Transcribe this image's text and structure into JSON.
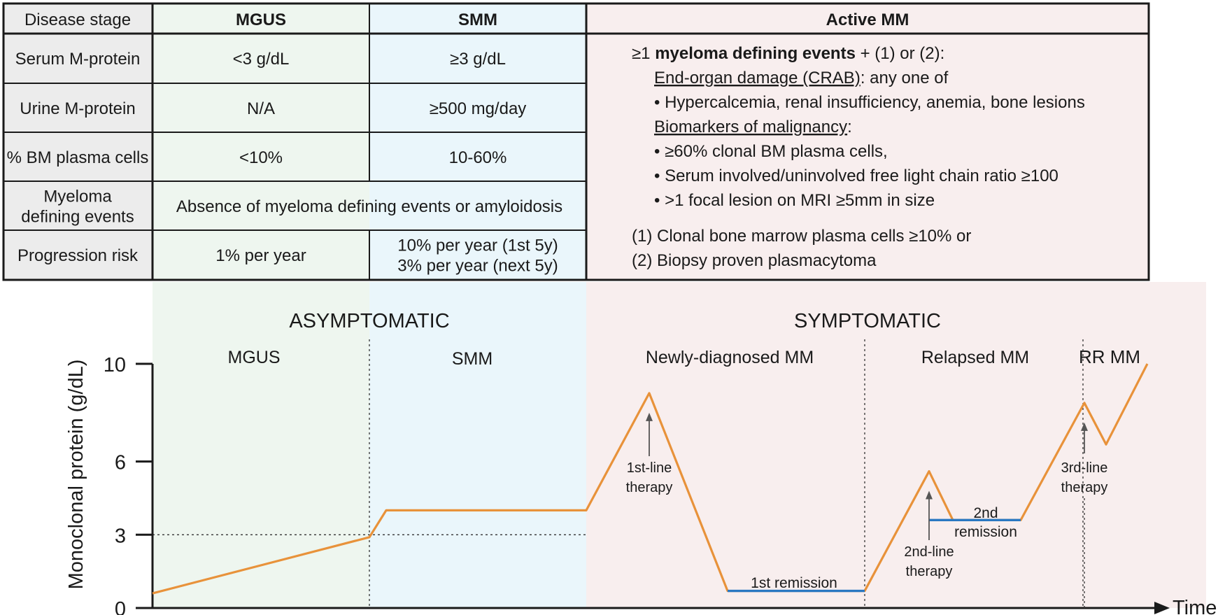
{
  "colors": {
    "mgus_bg": "#eef6ef",
    "smm_bg": "#eaf6fb",
    "mm_bg": "#f8eeee",
    "label_bg": "#ececec",
    "curve": "#e8923a",
    "remission": "#2a78c2",
    "rrmm": "#c0202a",
    "arrow_label": "#555555"
  },
  "table": {
    "header": {
      "stage": "Disease stage",
      "mgus": "MGUS",
      "smm": "SMM",
      "mm": "Active MM"
    },
    "rows": [
      {
        "label": [
          "Serum M-protein"
        ],
        "mgus": [
          "<3 g/dL"
        ],
        "smm": [
          "≥3 g/dL"
        ]
      },
      {
        "label": [
          "Urine M-protein"
        ],
        "mgus": [
          "N/A"
        ],
        "smm": [
          "≥500 mg/day"
        ]
      },
      {
        "label": [
          "% BM plasma cells"
        ],
        "mgus": [
          "<10%"
        ],
        "smm": [
          "10-60%"
        ]
      },
      {
        "label": [
          "Myeloma",
          "defining events"
        ],
        "merged": "Absence of myeloma defining events or amyloidosis"
      },
      {
        "label": [
          "Progression risk"
        ],
        "mgus": [
          "1% per year"
        ],
        "smm": [
          "10% per year (1st 5y)",
          "3% per year (next 5y)"
        ]
      }
    ],
    "mm_criteria": {
      "intro_prefix": "≥1 ",
      "intro_bold": "myeloma defining events",
      "intro_suffix": " + (1) or (2):",
      "crab_head": "End-organ damage (CRAB)",
      "crab_tail": ": any one of",
      "crab_item": "• Hypercalcemia, renal insufficiency, anemia, bone lesions",
      "bio_head": "Biomarkers of malignancy",
      "bio_tail": ":",
      "bio_items": [
        "• ≥60% clonal BM plasma cells,",
        "• Serum involved/uninvolved free light chain ratio ≥100",
        "• >1 focal lesion on MRI ≥5mm in size"
      ],
      "cond1": "(1) Clonal bone marrow plasma cells ≥10% or",
      "cond2": "(2) Biopsy proven plasmacytoma"
    }
  },
  "chart_data": {
    "type": "line",
    "ylabel": "Monoclonal protein (g/dL)",
    "xlabel": "Time",
    "yticks": [
      0,
      3,
      6,
      10
    ],
    "ylim": [
      0,
      10
    ],
    "groups": [
      "ASYMPTOMATIC",
      "SYMPTOMATIC"
    ],
    "phases": [
      "MGUS",
      "SMM",
      "Newly-diagnosed MM",
      "Relapsed MM",
      "RR MM"
    ],
    "threshold": 3,
    "series": [
      {
        "values": [
          0.6,
          2.9,
          4.0,
          4.0,
          8.8,
          0.7,
          0.7,
          5.6,
          3.6,
          3.6,
          8.4,
          6.7,
          10.0
        ]
      }
    ],
    "remissions": [
      {
        "label": "1st remission",
        "value": 0.7
      },
      {
        "label": [
          "2nd",
          "remission"
        ],
        "value": 3.6
      }
    ],
    "therapies": [
      [
        "1st-line",
        "therapy"
      ],
      [
        "2nd-line",
        "therapy"
      ],
      [
        "3rd-line",
        "therapy"
      ]
    ]
  }
}
